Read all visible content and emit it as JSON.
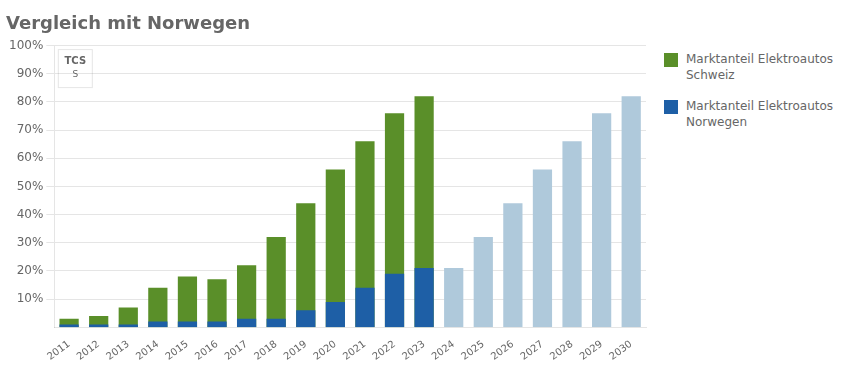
{
  "chart_data": {
    "type": "bar",
    "title": "Vergleich mit Norwegen",
    "categories": [
      "2011",
      "2012",
      "2013",
      "2014",
      "2015",
      "2016",
      "2017",
      "2018",
      "2019",
      "2020",
      "2021",
      "2022",
      "2023",
      "2024",
      "2025",
      "2026",
      "2027",
      "2028",
      "2029",
      "2030"
    ],
    "series": [
      {
        "name": "Marktanteil Elektroautos\nSchweiz",
        "color": "#5a8f29",
        "values": [
          3,
          4,
          7,
          14,
          18,
          17,
          22,
          32,
          44,
          56,
          66,
          76,
          82,
          null,
          null,
          null,
          null,
          null,
          null,
          null
        ]
      },
      {
        "name": "Marktanteil Elektroautos\nNorwegen",
        "colors": [
          "#1e5fa6",
          "#1e5fa6",
          "#1e5fa6",
          "#1e5fa6",
          "#1e5fa6",
          "#1e5fa6",
          "#1e5fa6",
          "#1e5fa6",
          "#1e5fa6",
          "#1e5fa6",
          "#1e5fa6",
          "#1e5fa6",
          "#1e5fa6",
          "#afc9db",
          "#afc9db",
          "#afc9db",
          "#afc9db",
          "#afc9db",
          "#afc9db",
          "#afc9db"
        ],
        "values": [
          1,
          1,
          1,
          2,
          2,
          2,
          3,
          3,
          6,
          9,
          14,
          19,
          21,
          21,
          32,
          44,
          56,
          66,
          76,
          82
        ]
      }
    ],
    "ylim": [
      0,
      100
    ],
    "yticks": [
      {
        "value": 10,
        "label": "10%"
      },
      {
        "value": 20,
        "label": "20%"
      },
      {
        "value": 30,
        "label": "30%"
      },
      {
        "value": 40,
        "label": "40%"
      },
      {
        "value": 50,
        "label": "50%"
      },
      {
        "value": 60,
        "label": "60%"
      },
      {
        "value": 70,
        "label": "70%"
      },
      {
        "value": 80,
        "label": "80%"
      },
      {
        "value": 90,
        "label": "90%"
      },
      {
        "value": 100,
        "label": "100%"
      }
    ],
    "grid": true,
    "legend": "right",
    "annotations": [
      "TCS",
      "S"
    ]
  }
}
